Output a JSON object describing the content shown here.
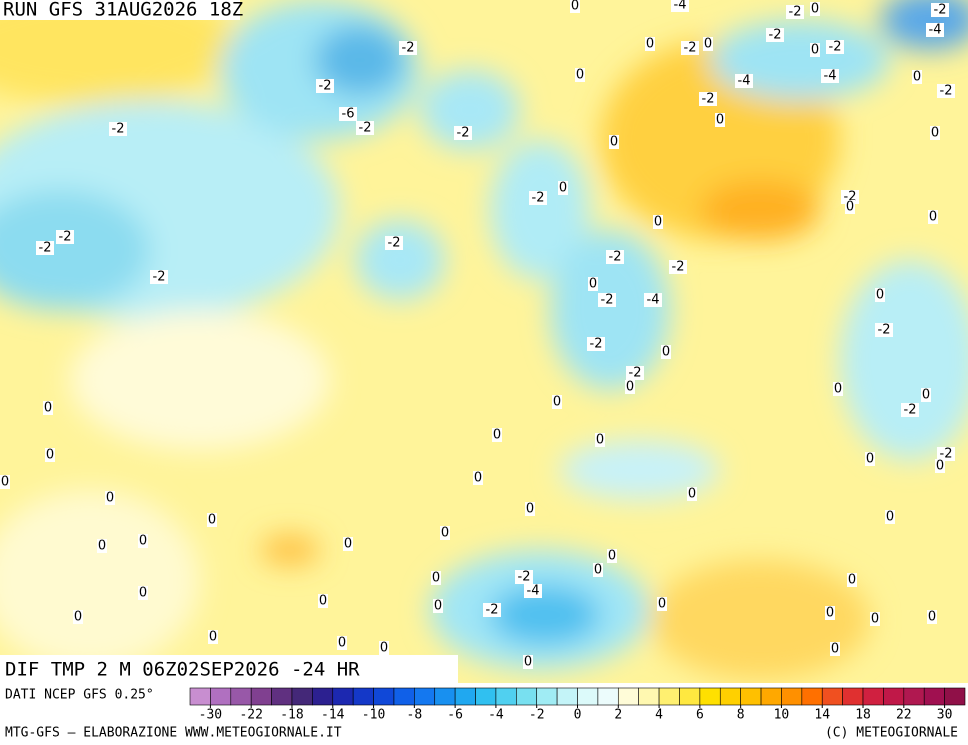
{
  "header": {
    "title": "RUN GFS 31AUG2026 18Z"
  },
  "map": {
    "field_label": "DIF TMP 2 M 06Z02SEP2026 -24 HR",
    "contour_labels": [
      0,
      -4,
      -2,
      0,
      -2,
      -4,
      -2,
      -2,
      0,
      -2,
      0,
      -2,
      0,
      0,
      -4,
      -4,
      0,
      -2,
      -2,
      -6,
      -2,
      -2,
      -2,
      -2,
      0,
      0,
      0,
      0,
      -2,
      -2,
      0,
      0,
      0,
      -2,
      -2,
      -2,
      -2,
      -2,
      0,
      -2,
      -4,
      -2,
      0,
      -2,
      -2,
      0,
      -2,
      0,
      0,
      0,
      -2,
      0,
      0,
      0,
      0,
      0,
      0,
      -2,
      0,
      0,
      0,
      0,
      0,
      0,
      0,
      0,
      0,
      0,
      0,
      0,
      0,
      0,
      0,
      -2,
      -4,
      0,
      0,
      0,
      -2,
      0,
      0,
      0,
      0,
      0,
      0,
      0,
      0,
      0,
      0,
      0
    ]
  },
  "legend": {
    "source": "DATI NCEP GFS 0.25°",
    "levels": [
      -30,
      -22,
      -18,
      -14,
      -10,
      -8,
      -6,
      -4,
      -2,
      0,
      2,
      4,
      6,
      8,
      10,
      14,
      18,
      22,
      30
    ],
    "colors": [
      "#c88ed0",
      "#b070c0",
      "#9858a8",
      "#804090",
      "#603080",
      "#442878",
      "#2c2090",
      "#1c28b0",
      "#1438c8",
      "#1048d8",
      "#1060e8",
      "#1478f0",
      "#1890f0",
      "#20a8f0",
      "#30c0f0",
      "#50d0f0",
      "#78e0f0",
      "#a0ecf4",
      "#c4f4f8",
      "#dcfafa",
      "#ecfcfc",
      "#fffcd8",
      "#fff8b0",
      "#fff070",
      "#ffe840",
      "#ffe000",
      "#ffd000",
      "#ffc000",
      "#ffa800",
      "#ff9000",
      "#ff7000",
      "#f05020",
      "#e03030",
      "#d02040",
      "#c01848",
      "#b01850",
      "#a01050",
      "#901048"
    ]
  },
  "footer": {
    "left": "MTG-GFS — ELABORAZIONE WWW.METEOGIORNALE.IT",
    "right": "(C) METEOGIORNALE"
  }
}
